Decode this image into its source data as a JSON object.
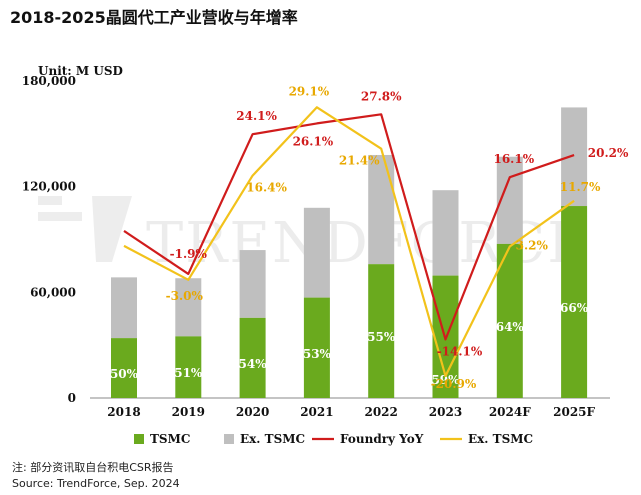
{
  "title": "2018-2025晶圆代工产业营收与年增率",
  "footer": {
    "note": "注: 部分资讯取自台积电CSR报告",
    "source": "Source: TrendForce, Sep. 2024"
  },
  "watermark": "TRENDFORCE",
  "chart_data": {
    "type": "bar",
    "title": "2018-2025晶圆代工产业营收与年增率",
    "unit_label": "Unit: M USD",
    "categories": [
      "2018",
      "2019",
      "2020",
      "2021",
      "2022",
      "2023",
      "2024F",
      "2025F"
    ],
    "ylim": [
      0,
      180000
    ],
    "yticks": [
      0,
      60000,
      120000,
      180000
    ],
    "ytick_labels": [
      "0",
      "60,000",
      "120,000",
      "180,000"
    ],
    "series": [
      {
        "name": "TSMC",
        "kind": "stacked-bar",
        "color": "#6aaa1e",
        "values": [
          34000,
          35000,
          45500,
          57000,
          76000,
          69500,
          87500,
          109000
        ],
        "share_labels": [
          "50%",
          "51%",
          "54%",
          "53%",
          "55%",
          "59%",
          "64%",
          "66%"
        ]
      },
      {
        "name": "Ex. TSMC",
        "kind": "stacked-bar",
        "color": "#bfbfbf",
        "values": [
          34500,
          33000,
          38500,
          51000,
          62000,
          48500,
          49500,
          56000
        ]
      },
      {
        "name": "Foundry YoY",
        "kind": "line",
        "color": "#d01c1c",
        "values": [
          6.1,
          -1.9,
          24.1,
          26.1,
          27.8,
          -14.1,
          16.1,
          20.2
        ],
        "labels": [
          "",
          "-1.9%",
          "24.1%",
          "26.1%",
          "27.8%",
          "-14.1%",
          "16.1%",
          "20.2%"
        ]
      },
      {
        "name": "Ex. TSMC",
        "kind": "line",
        "color": "#f2c21b",
        "values": [
          3.3,
          -3.0,
          16.4,
          29.1,
          21.4,
          -20.9,
          3.2,
          11.7
        ],
        "labels": [
          "",
          "-3.0%",
          "16.4%",
          "29.1%",
          "21.4%",
          "-20.9%",
          "3.2%",
          "11.7%"
        ]
      }
    ],
    "y2lim": [
      -25,
      34
    ],
    "legend": [
      "TSMC",
      "Ex. TSMC",
      "Foundry YoY",
      "Ex. TSMC"
    ],
    "legend_position": "bottom"
  }
}
